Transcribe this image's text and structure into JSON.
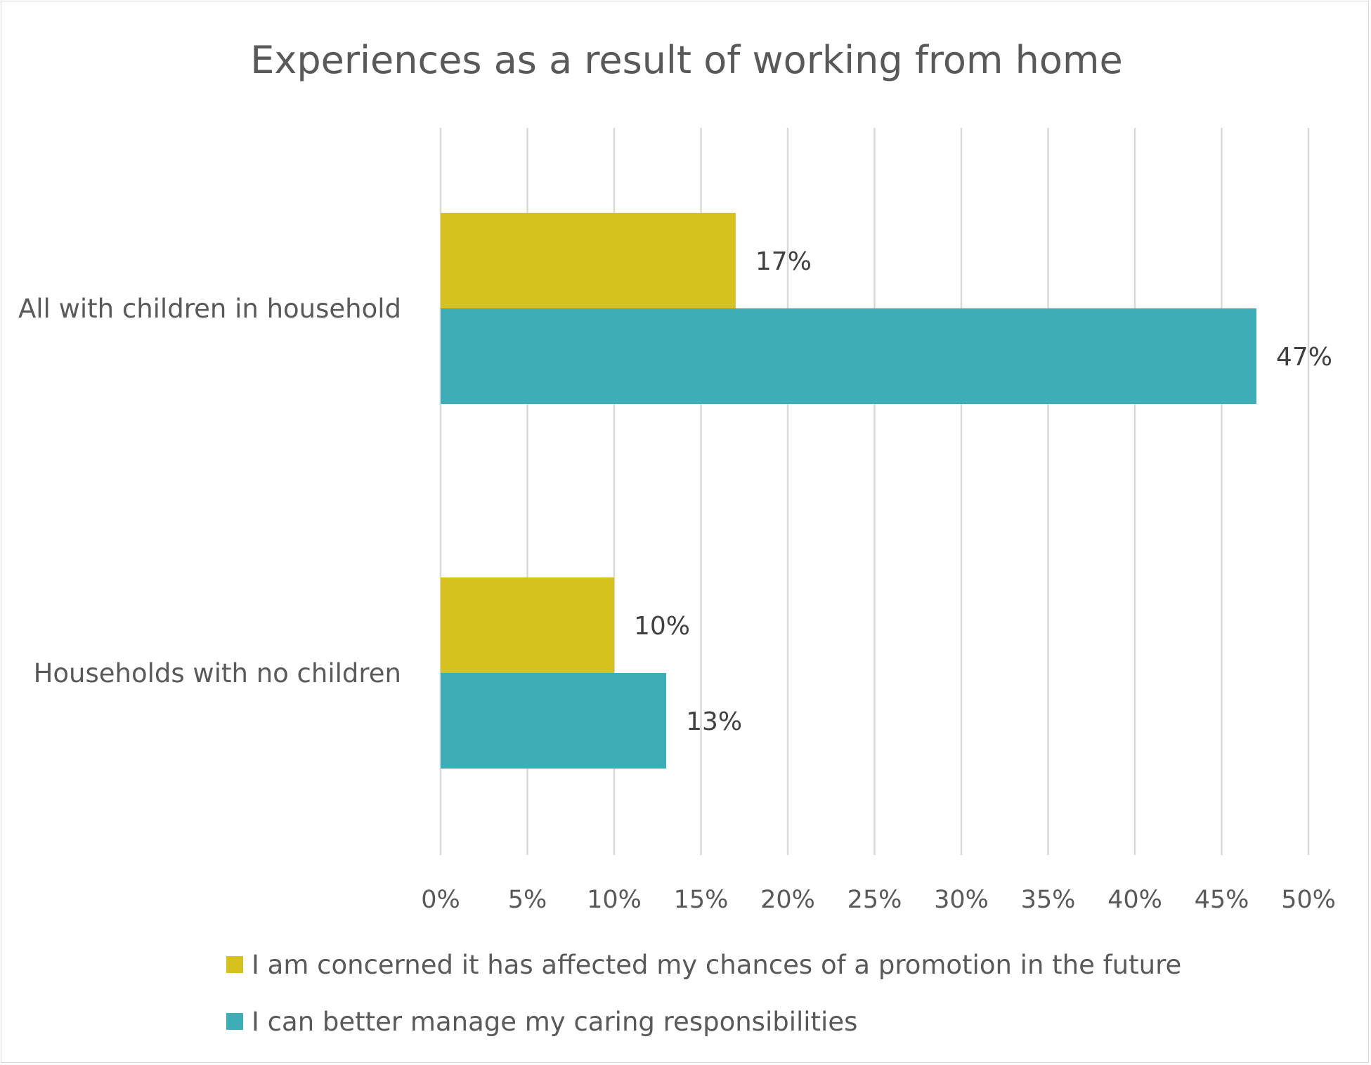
{
  "chart_data": {
    "type": "bar",
    "orientation": "horizontal",
    "title": "Experiences as a result of working from home",
    "categories": [
      "All with children in household",
      "Households with no children"
    ],
    "series": [
      {
        "name": "I am concerned it has affected my chances of a promotion in the future",
        "color": "#d6c11f",
        "values": [
          17,
          10
        ],
        "labels": [
          "17%",
          "10%"
        ]
      },
      {
        "name": "I can better manage my caring responsibilities",
        "color": "#3fadb7",
        "values": [
          47,
          13
        ],
        "labels": [
          "47%",
          "13%"
        ]
      }
    ],
    "xlim": [
      0,
      50
    ],
    "x_ticks": [
      0,
      5,
      10,
      15,
      20,
      25,
      30,
      35,
      40,
      45,
      50
    ],
    "x_tick_labels": [
      "0%",
      "5%",
      "10%",
      "15%",
      "20%",
      "25%",
      "30%",
      "35%",
      "40%",
      "45%",
      "50%"
    ],
    "grid": "vertical",
    "legend_position": "bottom"
  }
}
